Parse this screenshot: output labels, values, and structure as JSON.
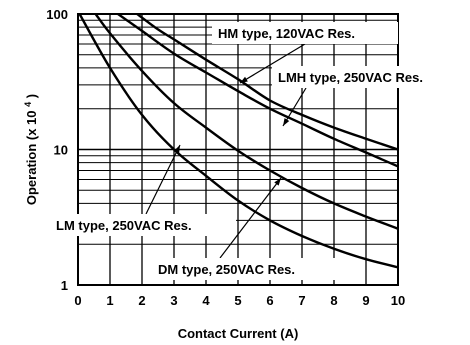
{
  "chart_data": {
    "type": "line",
    "xlabel": "Contact Current (A)",
    "ylabel": "Operation (x 10",
    "ylabel_sup": "4",
    "ylabel_close": ")",
    "xlim": [
      0,
      10
    ],
    "ylim": [
      1,
      100
    ],
    "y_scale": "log",
    "grid": true,
    "x_ticks": [
      "0",
      "1",
      "2",
      "3",
      "4",
      "5",
      "6",
      "7",
      "8",
      "9",
      "10"
    ],
    "y_ticks": [
      "1",
      "10",
      "100"
    ],
    "series": [
      {
        "name": "HM type, 120VAC Res.",
        "x": [
          1.85,
          2.5,
          3.0,
          4.0,
          5.0,
          6.0,
          7.0,
          8.0,
          9.0,
          10.0
        ],
        "y": [
          100,
          77,
          65,
          46,
          33,
          23,
          18,
          14.5,
          12,
          10
        ]
      },
      {
        "name": "LMH type, 250VAC Res.",
        "x": [
          1.25,
          2.0,
          3.0,
          4.0,
          5.0,
          6.0,
          7.0,
          8.0,
          9.0,
          10.0
        ],
        "y": [
          100,
          75,
          51,
          37,
          27,
          20,
          15.5,
          12,
          9.5,
          7.5
        ]
      },
      {
        "name": "DM type, 250VAC  Res.",
        "x": [
          0.55,
          1.0,
          2.0,
          3.0,
          4.0,
          5.0,
          6.0,
          7.0,
          8.0,
          9.0,
          10.0
        ],
        "y": [
          100,
          72,
          38,
          22,
          14.5,
          9.8,
          7.0,
          5.2,
          4.0,
          3.2,
          2.6
        ]
      },
      {
        "name": "LM type, 250VAC Res.",
        "x": [
          0.05,
          1.0,
          2.0,
          3.0,
          4.0,
          5.0,
          6.0,
          7.0,
          8.0,
          9.0,
          10.0
        ],
        "y": [
          100,
          40,
          18,
          10,
          6.4,
          4.2,
          3.0,
          2.3,
          1.85,
          1.55,
          1.35
        ]
      }
    ],
    "annotations": [
      {
        "text": "HM type, 120VAC Res.",
        "series": 0,
        "box": true
      },
      {
        "text": "LMH type, 250VAC Res.",
        "series": 1,
        "box": true
      },
      {
        "text": "LM type, 250VAC Res.",
        "series": 3,
        "box": true
      },
      {
        "text": "DM type, 250VAC  Res.",
        "series": 2,
        "box": true
      }
    ]
  }
}
